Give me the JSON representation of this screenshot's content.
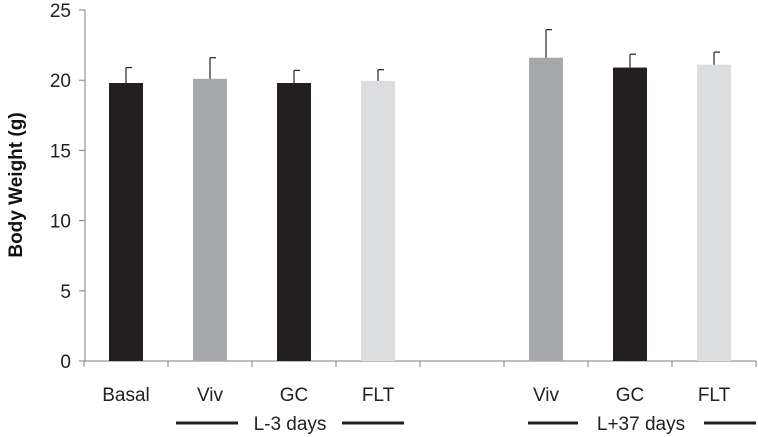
{
  "chart_data": {
    "type": "bar",
    "ylabel": "Body Weight (g)",
    "ylim": [
      0,
      25
    ],
    "yticks": [
      0,
      5,
      10,
      15,
      20,
      25
    ],
    "grid": false,
    "bars": [
      {
        "label": "Basal",
        "value": 19.8,
        "error": 1.1,
        "color": "#231f20"
      },
      {
        "label": "Viv",
        "value": 20.1,
        "error": 1.5,
        "color": "#a6a8ab"
      },
      {
        "label": "GC",
        "value": 19.8,
        "error": 0.9,
        "color": "#231f20"
      },
      {
        "label": "FLT",
        "value": 19.95,
        "error": 0.8,
        "color": "#dcddde"
      },
      {
        "label": "Viv",
        "value": 21.6,
        "error": 2.0,
        "color": "#a6a8ab"
      },
      {
        "label": "GC",
        "value": 20.9,
        "error": 0.95,
        "color": "#231f20"
      },
      {
        "label": "FLT",
        "value": 21.1,
        "error": 0.9,
        "color": "#dcddde"
      }
    ],
    "groups": [
      {
        "label": "L-3 days"
      },
      {
        "label": "L+37 days"
      }
    ]
  }
}
